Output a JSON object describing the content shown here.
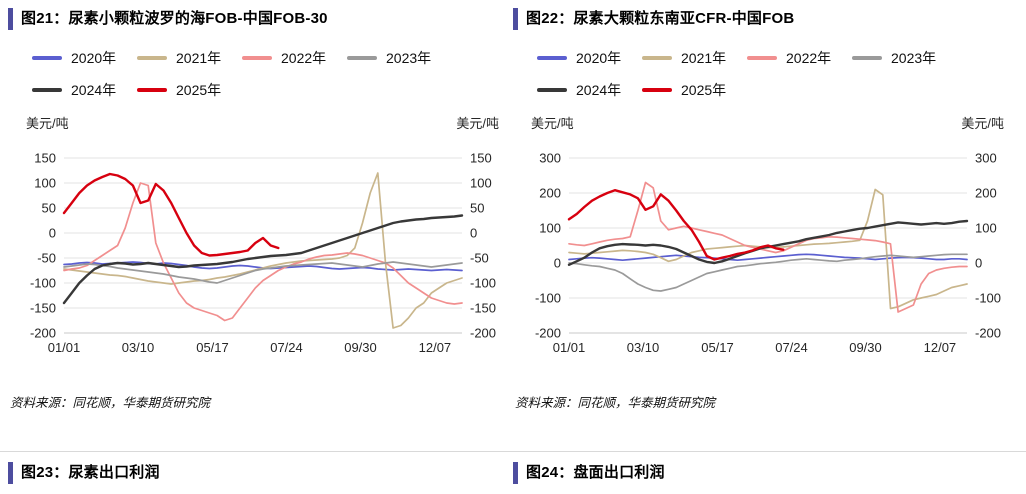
{
  "page": {
    "accent_color": "#4d4d9f",
    "divider_color": "#d9d9d9",
    "sources": [
      "资料来源：同花顺，华泰期货研究院",
      "资料来源：同花顺，华泰期货研究院"
    ],
    "bottom_titles": [
      "图23：尿素出口利润",
      "图24：盘面出口利润"
    ]
  },
  "chart_data": [
    {
      "type": "line",
      "title": "图21：尿素小颗粒波罗的海FOB-中国FOB-30",
      "ylabel": "美元/吨",
      "ylabel_right": "美元/吨",
      "ylim": [
        -200,
        150
      ],
      "yticks": [
        150,
        100,
        50,
        0,
        -50,
        -100,
        -150,
        -200
      ],
      "xticks": [
        {
          "label": "01/01",
          "pos": 0.0
        },
        {
          "label": "03/10",
          "pos": 0.186
        },
        {
          "label": "05/17",
          "pos": 0.373
        },
        {
          "label": "07/24",
          "pos": 0.559
        },
        {
          "label": "09/30",
          "pos": 0.745
        },
        {
          "label": "12/07",
          "pos": 0.932
        }
      ],
      "grid": true,
      "legend_position": "top",
      "series": [
        {
          "name": "2020年",
          "color": "#5b5fd0",
          "stroke": 1.7,
          "values": [
            -63,
            -62,
            -60,
            -59,
            -60,
            -62,
            -61,
            -60,
            -59,
            -58,
            -59,
            -61,
            -62,
            -60,
            -61,
            -63,
            -65,
            -68,
            -70,
            -71,
            -70,
            -68,
            -66,
            -65,
            -66,
            -68,
            -70,
            -71,
            -70,
            -69,
            -68,
            -67,
            -66,
            -67,
            -69,
            -71,
            -72,
            -71,
            -70,
            -69,
            -70,
            -72,
            -73,
            -74,
            -73,
            -72,
            -73,
            -74,
            -75,
            -74,
            -73,
            -74,
            -75
          ]
        },
        {
          "name": "2021年",
          "color": "#c9b68c",
          "stroke": 1.7,
          "values": [
            -72,
            -74,
            -76,
            -78,
            -80,
            -82,
            -84,
            -85,
            -87,
            -90,
            -93,
            -96,
            -98,
            -100,
            -102,
            -100,
            -98,
            -96,
            -95,
            -93,
            -90,
            -88,
            -85,
            -82,
            -78,
            -74,
            -70,
            -66,
            -63,
            -60,
            -58,
            -56,
            -55,
            -54,
            -53,
            -52,
            -50,
            -45,
            -30,
            20,
            80,
            120,
            -60,
            -190,
            -185,
            -170,
            -150,
            -140,
            -120,
            -110,
            -100,
            -95,
            -90
          ]
        },
        {
          "name": "2022年",
          "color": "#f18f8f",
          "stroke": 1.7,
          "values": [
            -75,
            -72,
            -70,
            -65,
            -55,
            -45,
            -35,
            -25,
            10,
            60,
            100,
            95,
            -20,
            -60,
            -90,
            -120,
            -140,
            -150,
            -155,
            -160,
            -165,
            -175,
            -170,
            -150,
            -130,
            -110,
            -95,
            -85,
            -75,
            -68,
            -62,
            -58,
            -52,
            -48,
            -45,
            -44,
            -42,
            -40,
            -42,
            -45,
            -50,
            -55,
            -60,
            -70,
            -85,
            -100,
            -110,
            -120,
            -130,
            -135,
            -140,
            -142,
            -140
          ]
        },
        {
          "name": "2023年",
          "color": "#9a9a9a",
          "stroke": 1.7,
          "values": [
            -68,
            -66,
            -64,
            -62,
            -63,
            -65,
            -67,
            -70,
            -72,
            -74,
            -76,
            -78,
            -80,
            -82,
            -85,
            -88,
            -90,
            -92,
            -95,
            -98,
            -100,
            -95,
            -90,
            -85,
            -80,
            -75,
            -72,
            -70,
            -68,
            -66,
            -65,
            -64,
            -63,
            -62,
            -61,
            -60,
            -62,
            -64,
            -66,
            -68,
            -65,
            -62,
            -60,
            -58,
            -60,
            -62,
            -64,
            -66,
            -68,
            -66,
            -64,
            -62,
            -60
          ]
        },
        {
          "name": "2024年",
          "color": "#383838",
          "stroke": 2.4,
          "values": [
            -140,
            -120,
            -100,
            -85,
            -72,
            -65,
            -62,
            -60,
            -61,
            -63,
            -62,
            -60,
            -62,
            -64,
            -66,
            -68,
            -67,
            -65,
            -64,
            -63,
            -62,
            -60,
            -58,
            -55,
            -52,
            -50,
            -48,
            -46,
            -45,
            -44,
            -42,
            -40,
            -35,
            -30,
            -25,
            -20,
            -15,
            -10,
            -5,
            0,
            5,
            10,
            15,
            20,
            23,
            25,
            27,
            28,
            30,
            31,
            32,
            33,
            35
          ]
        },
        {
          "name": "2025年",
          "color": "#d7000f",
          "stroke": 2.4,
          "values": [
            40,
            60,
            80,
            95,
            105,
            112,
            118,
            115,
            108,
            95,
            60,
            65,
            98,
            85,
            60,
            30,
            0,
            -25,
            -40,
            -45,
            -44,
            -42,
            -40,
            -38,
            -35,
            -20,
            -10,
            -25,
            -30
          ]
        }
      ]
    },
    {
      "type": "line",
      "title": "图22：尿素大颗粒东南亚CFR-中国FOB",
      "ylabel": "美元/吨",
      "ylabel_right": "美元/吨",
      "ylim": [
        -200,
        300
      ],
      "yticks": [
        300,
        200,
        100,
        0,
        -100,
        -200
      ],
      "xticks": [
        {
          "label": "01/01",
          "pos": 0.0
        },
        {
          "label": "03/10",
          "pos": 0.186
        },
        {
          "label": "05/17",
          "pos": 0.373
        },
        {
          "label": "07/24",
          "pos": 0.559
        },
        {
          "label": "09/30",
          "pos": 0.745
        },
        {
          "label": "12/07",
          "pos": 0.932
        }
      ],
      "grid": true,
      "legend_position": "top",
      "series": [
        {
          "name": "2020年",
          "color": "#5b5fd0",
          "stroke": 1.7,
          "values": [
            10,
            12,
            14,
            15,
            14,
            12,
            10,
            8,
            10,
            12,
            14,
            16,
            18,
            20,
            22,
            20,
            18,
            16,
            15,
            14,
            12,
            10,
            8,
            10,
            12,
            14,
            16,
            18,
            20,
            22,
            24,
            25,
            24,
            22,
            20,
            18,
            16,
            15,
            14,
            12,
            10,
            12,
            14,
            15,
            16,
            15,
            14,
            12,
            10,
            10,
            12,
            12,
            10
          ]
        },
        {
          "name": "2021年",
          "color": "#c9b68c",
          "stroke": 1.7,
          "values": [
            30,
            28,
            26,
            28,
            30,
            32,
            34,
            36,
            35,
            33,
            30,
            25,
            15,
            5,
            10,
            20,
            30,
            35,
            40,
            42,
            44,
            46,
            48,
            50,
            48,
            46,
            44,
            45,
            46,
            48,
            50,
            52,
            54,
            55,
            56,
            58,
            60,
            62,
            65,
            120,
            210,
            195,
            -130,
            -125,
            -115,
            -105,
            -100,
            -95,
            -90,
            -80,
            -70,
            -65,
            -60
          ]
        },
        {
          "name": "2022年",
          "color": "#f18f8f",
          "stroke": 1.7,
          "values": [
            55,
            52,
            50,
            55,
            60,
            65,
            68,
            70,
            75,
            150,
            230,
            215,
            120,
            95,
            100,
            105,
            100,
            95,
            90,
            85,
            80,
            70,
            60,
            50,
            45,
            40,
            35,
            30,
            35,
            45,
            55,
            65,
            70,
            72,
            75,
            74,
            72,
            70,
            68,
            66,
            64,
            60,
            55,
            -140,
            -130,
            -120,
            -60,
            -30,
            -20,
            -15,
            -12,
            -10,
            -10
          ]
        },
        {
          "name": "2023年",
          "color": "#9a9a9a",
          "stroke": 1.7,
          "values": [
            0,
            -2,
            -5,
            -8,
            -10,
            -15,
            -20,
            -30,
            -45,
            -60,
            -70,
            -78,
            -80,
            -75,
            -70,
            -60,
            -50,
            -40,
            -30,
            -25,
            -20,
            -15,
            -10,
            -8,
            -5,
            -2,
            0,
            2,
            5,
            8,
            10,
            12,
            10,
            8,
            6,
            5,
            8,
            10,
            12,
            15,
            18,
            20,
            22,
            20,
            18,
            16,
            18,
            20,
            22,
            24,
            25,
            25,
            25
          ]
        },
        {
          "name": "2024年",
          "color": "#383838",
          "stroke": 2.4,
          "values": [
            -5,
            5,
            15,
            30,
            42,
            48,
            52,
            54,
            53,
            52,
            50,
            52,
            50,
            46,
            40,
            30,
            20,
            10,
            3,
            0,
            5,
            12,
            20,
            28,
            35,
            42,
            46,
            50,
            54,
            58,
            62,
            68,
            72,
            76,
            80,
            86,
            90,
            94,
            98,
            100,
            104,
            108,
            112,
            116,
            114,
            112,
            110,
            112,
            114,
            112,
            114,
            118,
            120
          ]
        },
        {
          "name": "2025年",
          "color": "#d7000f",
          "stroke": 2.4,
          "values": [
            125,
            140,
            160,
            178,
            190,
            200,
            208,
            202,
            196,
            185,
            152,
            162,
            196,
            178,
            150,
            120,
            95,
            60,
            20,
            10,
            15,
            20,
            26,
            30,
            36,
            45,
            50,
            42,
            38
          ]
        }
      ]
    }
  ]
}
